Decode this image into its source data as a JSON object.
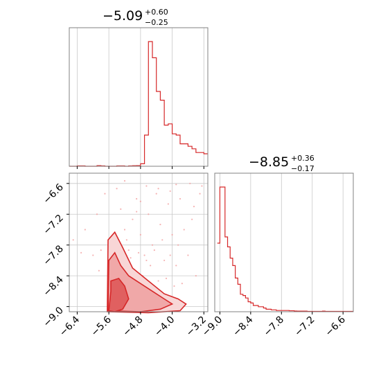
{
  "chart_data": {
    "type": "corner",
    "color": "#d62728",
    "grid": true,
    "parameters": [
      {
        "title": {
          "median": "−5.09",
          "plus": "+0.60",
          "minus": "−0.25"
        },
        "range": [
          -6.6,
          -3.1
        ],
        "ticks": [
          "−6.4",
          "−5.6",
          "−4.8",
          "−4.0",
          "−3.2"
        ],
        "tick_values": [
          -6.4,
          -5.6,
          -4.8,
          -4.0,
          -3.2
        ],
        "hist_edges_start": -6.6,
        "hist_bin_width": 0.1,
        "hist_counts": [
          0,
          0,
          0.3,
          0.3,
          0,
          0,
          0,
          0.5,
          0.3,
          0,
          0,
          0,
          0.3,
          0.3,
          0,
          0.3,
          0.4,
          0.5,
          2,
          25,
          100,
          87,
          60,
          53,
          33,
          34,
          26,
          25,
          18,
          18,
          16,
          14,
          11,
          11,
          10,
          8,
          8,
          7,
          6,
          5,
          5,
          4,
          4,
          3,
          2,
          2,
          2,
          1,
          1,
          0.5,
          0.3,
          0.2,
          0.2,
          0,
          0.1,
          0.1,
          0,
          0,
          0,
          0,
          0,
          0,
          0,
          0,
          0,
          0,
          0,
          0,
          0,
          0
        ]
      },
      {
        "title": {
          "median": "−8.85",
          "plus": "+0.36",
          "minus": "−0.17"
        },
        "range": [
          -9.1,
          -6.4
        ],
        "ticks": [
          "−9.0",
          "−8.4",
          "−7.8",
          "−7.2",
          "−6.6"
        ],
        "tick_values": [
          -9.0,
          -8.4,
          -7.8,
          -7.2,
          -6.6
        ],
        "hist_edges_start": -9.05,
        "hist_bin_width": 0.05,
        "hist_counts": [
          55,
          100,
          100,
          60,
          52,
          43,
          37,
          27,
          22,
          14,
          13,
          11,
          8,
          7,
          5,
          5,
          4,
          4,
          3,
          2,
          2,
          1.5,
          1.5,
          1,
          1,
          1,
          1,
          1,
          0.8,
          0.8,
          0.6,
          0.5,
          0.5,
          0.5,
          0.5,
          0.3,
          0.3,
          0.3,
          0.3,
          0.3,
          0.3,
          0.5,
          0.3,
          0.3,
          0.3,
          0.3,
          0.3,
          0.3,
          0.3,
          0.3,
          0.3,
          0.3,
          0.3,
          0.3,
          0.3,
          0.3
        ]
      }
    ],
    "joint": {
      "x_ticks": [
        "−6.4",
        "−5.6",
        "−4.8",
        "−4.0",
        "−3.2"
      ],
      "y_ticks": [
        "−6.6",
        "−7.2",
        "−7.8",
        "−8.4",
        "−9.0"
      ],
      "y_tick_values": [
        -6.6,
        -7.2,
        -7.8,
        -8.4,
        -9.0
      ],
      "y_range": [
        -9.1,
        -6.4
      ],
      "contour_levels": [
        [
          [
            -5.6,
            -9.08
          ],
          [
            -5.55,
            -8.7
          ],
          [
            -5.55,
            -8.5
          ],
          [
            -5.35,
            -8.45
          ],
          [
            -5.2,
            -8.6
          ],
          [
            -5.1,
            -8.85
          ],
          [
            -5.25,
            -9.05
          ],
          [
            -5.45,
            -9.1
          ]
        ],
        [
          [
            -5.62,
            -9.08
          ],
          [
            -5.6,
            -8.1
          ],
          [
            -5.45,
            -7.95
          ],
          [
            -5.3,
            -8.2
          ],
          [
            -5.1,
            -8.4
          ],
          [
            -4.8,
            -8.55
          ],
          [
            -4.5,
            -8.7
          ],
          [
            -4.2,
            -8.85
          ],
          [
            -4.0,
            -8.95
          ],
          [
            -4.3,
            -9.05
          ],
          [
            -4.8,
            -9.1
          ]
        ],
        [
          [
            -5.64,
            -9.1
          ],
          [
            -5.62,
            -7.7
          ],
          [
            -5.45,
            -7.55
          ],
          [
            -5.25,
            -7.85
          ],
          [
            -5.0,
            -8.25
          ],
          [
            -4.6,
            -8.5
          ],
          [
            -4.2,
            -8.75
          ],
          [
            -3.85,
            -8.85
          ],
          [
            -3.65,
            -8.95
          ],
          [
            -3.8,
            -9.08
          ],
          [
            -4.6,
            -9.12
          ]
        ]
      ],
      "scatter": [
        [
          -6.5,
          -7.7
        ],
        [
          -6.2,
          -7.5
        ],
        [
          -5.9,
          -7.2
        ],
        [
          -5.7,
          -6.8
        ],
        [
          -5.4,
          -6.7
        ],
        [
          -5.3,
          -7.1
        ],
        [
          -5.2,
          -7.5
        ],
        [
          -5.1,
          -7.9
        ],
        [
          -5.0,
          -7.3
        ],
        [
          -4.9,
          -6.9
        ],
        [
          -4.8,
          -7.6
        ],
        [
          -4.7,
          -8.0
        ],
        [
          -4.6,
          -7.2
        ],
        [
          -4.5,
          -7.8
        ],
        [
          -4.4,
          -6.8
        ],
        [
          -4.3,
          -7.4
        ],
        [
          -4.2,
          -8.1
        ],
        [
          -4.1,
          -7.0
        ],
        [
          -4.0,
          -7.6
        ],
        [
          -3.9,
          -8.2
        ],
        [
          -3.8,
          -6.9
        ],
        [
          -3.7,
          -7.5
        ],
        [
          -3.6,
          -8.0
        ],
        [
          -3.5,
          -7.3
        ],
        [
          -3.4,
          -8.4
        ],
        [
          -3.3,
          -6.8
        ],
        [
          -4.95,
          -8.3
        ],
        [
          -4.75,
          -8.4
        ],
        [
          -4.55,
          -8.2
        ],
        [
          -4.35,
          -8.5
        ],
        [
          -4.15,
          -8.45
        ],
        [
          -3.95,
          -8.6
        ],
        [
          -3.75,
          -8.55
        ],
        [
          -5.45,
          -8.3
        ],
        [
          -5.35,
          -7.95
        ],
        [
          -5.25,
          -8.2
        ],
        [
          -5.15,
          -7.7
        ],
        [
          -5.05,
          -8.05
        ],
        [
          -4.85,
          -7.95
        ],
        [
          -4.65,
          -8.1
        ],
        [
          -4.45,
          -7.9
        ],
        [
          -4.25,
          -7.7
        ],
        [
          -4.05,
          -8.0
        ],
        [
          -3.85,
          -7.8
        ],
        [
          -5.55,
          -7.85
        ],
        [
          -5.5,
          -7.6
        ],
        [
          -5.8,
          -7.9
        ],
        [
          -6.0,
          -8.0
        ],
        [
          -5.85,
          -8.3
        ],
        [
          -6.3,
          -7.95
        ],
        [
          -3.25,
          -6.65
        ],
        [
          -3.45,
          -7.05
        ],
        [
          -3.55,
          -6.6
        ],
        [
          -4.65,
          -6.65
        ],
        [
          -4.35,
          -6.7
        ],
        [
          -4.05,
          -6.75
        ],
        [
          -3.9,
          -6.62
        ],
        [
          -5.2,
          -6.55
        ],
        [
          -4.8,
          -6.95
        ],
        [
          -4.9,
          -7.15
        ]
      ]
    }
  }
}
